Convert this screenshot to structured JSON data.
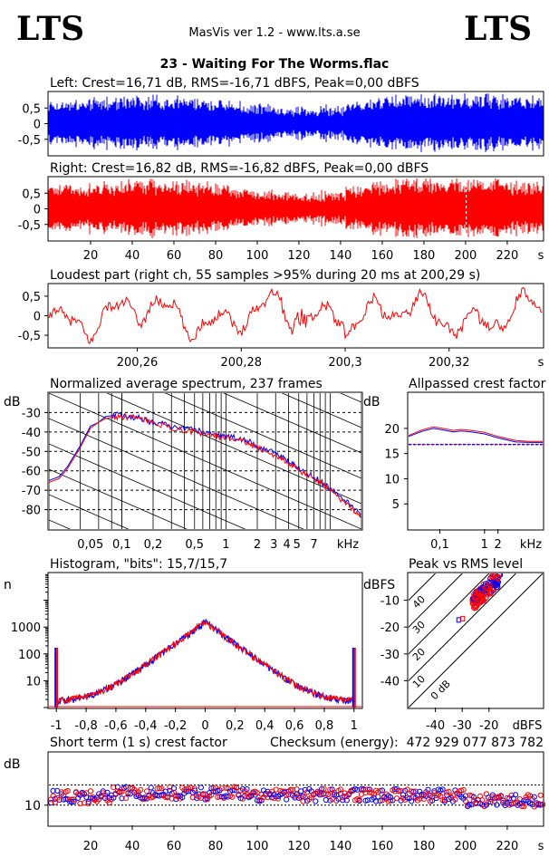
{
  "header": {
    "logo_left": "LTS",
    "logo_right": "LTS",
    "app_title": "MasVis ver 1.2 - www.lts.a.se",
    "track_title": "23 - Waiting For The Worms.flac"
  },
  "colors": {
    "left": "#0000ff",
    "right": "#ff0000",
    "grid": "#000000"
  },
  "chart_data": [
    {
      "id": "left-waveform",
      "type": "area",
      "title": "Left: Crest=16,71 dB, RMS=-16,71 dBFS, Peak=0,00 dBFS",
      "series": [
        {
          "name": "Left",
          "color": "#0000ff"
        }
      ],
      "y_ticks": [
        "0,5",
        "0",
        "-0,5"
      ],
      "ylim": [
        -1,
        1
      ],
      "xlim": [
        0,
        237
      ]
    },
    {
      "id": "right-waveform",
      "type": "area",
      "title": "Right: Crest=16,82 dB, RMS=-16,82 dBFS, Peak=0,00 dBFS",
      "series": [
        {
          "name": "Right",
          "color": "#ff0000"
        }
      ],
      "y_ticks": [
        "0,5",
        "0",
        "-0,5"
      ],
      "x_ticks": [
        "20",
        "40",
        "60",
        "80",
        "100",
        "120",
        "140",
        "160",
        "180",
        "200",
        "220",
        "s"
      ],
      "x_tick_values": [
        20,
        40,
        60,
        80,
        100,
        120,
        140,
        160,
        180,
        200,
        220
      ],
      "ylim": [
        -1,
        1
      ],
      "xlim": [
        0,
        237
      ],
      "marker_x": 200.29
    },
    {
      "id": "loudest-part",
      "type": "line",
      "title": "Loudest part (right ch, 55 samples >95% during 20 ms at 200,29 s)",
      "series": [
        {
          "name": "Right",
          "color": "#ff0000"
        }
      ],
      "y_ticks": [
        "0,5",
        "0",
        "-0,5"
      ],
      "x_ticks": [
        "200,26",
        "200,28",
        "200,3",
        "200,32",
        "s"
      ],
      "x_tick_values": [
        200.26,
        200.28,
        200.3,
        200.32
      ],
      "xlim": [
        200.243,
        200.338
      ],
      "ylim": [
        -0.8,
        0.8
      ]
    },
    {
      "id": "average-spectrum",
      "type": "line",
      "title": "Normalized average spectrum, 237 frames",
      "ylabel": "dB",
      "xlabel": "kHz",
      "y_ticks": [
        "-30",
        "-40",
        "-50",
        "-60",
        "-70",
        "-80"
      ],
      "y_tick_values": [
        -30,
        -40,
        -50,
        -60,
        -70,
        -80
      ],
      "x_ticks": [
        "0,05",
        "0,1",
        "0,2",
        "0,5",
        "1",
        "2",
        "3",
        "4",
        "5",
        "7",
        "kHz"
      ],
      "x_tick_values": [
        0.05,
        0.1,
        0.2,
        0.5,
        1,
        2,
        3,
        4,
        5,
        7
      ],
      "xlim": [
        0.02,
        20
      ],
      "ylim": [
        -90,
        -20
      ],
      "series": [
        {
          "name": "Left",
          "color": "#0000ff",
          "x": [
            0.02,
            0.025,
            0.03,
            0.04,
            0.05,
            0.06,
            0.07,
            0.1,
            0.15,
            0.2,
            0.3,
            0.5,
            0.8,
            1,
            1.5,
            2,
            3,
            4,
            5,
            7,
            10,
            15,
            20
          ],
          "y": [
            -65,
            -63,
            -58,
            -47,
            -37,
            -35,
            -32,
            -31,
            -33,
            -35,
            -37,
            -39,
            -41,
            -42,
            -44,
            -47,
            -51,
            -55,
            -59,
            -63,
            -69,
            -77,
            -83
          ]
        },
        {
          "name": "Right",
          "color": "#ff0000",
          "x": [
            0.02,
            0.025,
            0.03,
            0.04,
            0.05,
            0.06,
            0.07,
            0.1,
            0.15,
            0.2,
            0.3,
            0.5,
            0.8,
            1,
            1.5,
            2,
            3,
            4,
            5,
            7,
            10,
            15,
            20
          ],
          "y": [
            -66,
            -64,
            -59,
            -48,
            -38,
            -35,
            -33,
            -32,
            -33,
            -35,
            -38,
            -40,
            -42,
            -43,
            -45,
            -48,
            -52,
            -56,
            -60,
            -64,
            -70,
            -78,
            -83
          ]
        }
      ]
    },
    {
      "id": "allpassed-crest",
      "type": "line",
      "title": "Allpassed crest factor",
      "ylabel": "dB",
      "xlabel": "kHz",
      "y_ticks": [
        "20",
        "15",
        "10",
        "5"
      ],
      "y_tick_values": [
        20,
        15,
        10,
        5
      ],
      "x_ticks": [
        "0,1",
        "1",
        "2",
        "kHz"
      ],
      "x_tick_values": [
        0.1,
        1,
        2
      ],
      "xlim": [
        0.02,
        20
      ],
      "ylim": [
        0,
        27
      ],
      "reference": 16.8,
      "series": [
        {
          "name": "Left",
          "color": "#0000ff",
          "x": [
            0.02,
            0.04,
            0.07,
            0.1,
            0.2,
            0.3,
            0.5,
            1,
            2,
            5,
            10,
            20
          ],
          "y": [
            18.4,
            19.4,
            20.0,
            19.8,
            19.3,
            19.5,
            19.3,
            18.9,
            18.1,
            17.3,
            17.2,
            17.2
          ]
        },
        {
          "name": "Right",
          "color": "#ff0000",
          "x": [
            0.02,
            0.04,
            0.07,
            0.1,
            0.2,
            0.3,
            0.5,
            1,
            2,
            5,
            10,
            20
          ],
          "y": [
            18.6,
            19.7,
            20.3,
            20.1,
            19.6,
            19.8,
            19.6,
            19.2,
            18.4,
            17.6,
            17.4,
            17.4
          ]
        }
      ]
    },
    {
      "id": "histogram",
      "type": "bar",
      "title": "Histogram, \"bits\": 15,7/15,7",
      "ylabel": "n",
      "y_ticks": [
        "1000",
        "100",
        "10"
      ],
      "y_tick_values": [
        1000,
        100,
        10
      ],
      "x_ticks": [
        "-1",
        "-0,8",
        "-0,6",
        "-0,4",
        "-0,2",
        "0",
        "0,2",
        "0,4",
        "0,6",
        "0,8",
        "1"
      ],
      "x_tick_values": [
        -1,
        -0.8,
        -0.6,
        -0.4,
        -0.2,
        0,
        0.2,
        0.4,
        0.6,
        0.8,
        1
      ],
      "xlim": [
        -1.05,
        1.05
      ],
      "ylim": [
        1,
        100000
      ],
      "peak_count": 1500,
      "edge_count": 170
    },
    {
      "id": "peak-vs-rms",
      "type": "scatter",
      "title": "Peak vs RMS level",
      "ylabel": "dBFS",
      "xlabel": "dBFS",
      "y_ticks": [
        "-10",
        "-20",
        "-30",
        "-40"
      ],
      "y_tick_values": [
        -10,
        -20,
        -30,
        -40
      ],
      "x_ticks": [
        "-40",
        "-30",
        "-20",
        "dBFS"
      ],
      "x_tick_values": [
        -40,
        -30,
        -20
      ],
      "xlim": [
        -50,
        0
      ],
      "ylim": [
        -50,
        0
      ],
      "diagonal_labels": [
        "40",
        "30",
        "20",
        "10",
        "0 dB"
      ],
      "diagonal_values": [
        40,
        30,
        20,
        10,
        0
      ]
    },
    {
      "id": "short-term-crest",
      "type": "scatter",
      "title": "Short term (1 s) crest factor",
      "checksum_label": "Checksum (energy):",
      "checksum_value": "472 929 077 873 782",
      "ylabel": "dB",
      "y_ticks": [
        "10"
      ],
      "y_tick_values": [
        10
      ],
      "x_ticks": [
        "20",
        "40",
        "60",
        "80",
        "100",
        "120",
        "140",
        "160",
        "180",
        "200",
        "220",
        "s"
      ],
      "x_tick_values": [
        20,
        40,
        60,
        80,
        100,
        120,
        140,
        160,
        180,
        200,
        220
      ],
      "xlim": [
        0,
        237
      ],
      "ylim": [
        5,
        23
      ],
      "ref_lines": [
        10,
        15
      ]
    }
  ]
}
